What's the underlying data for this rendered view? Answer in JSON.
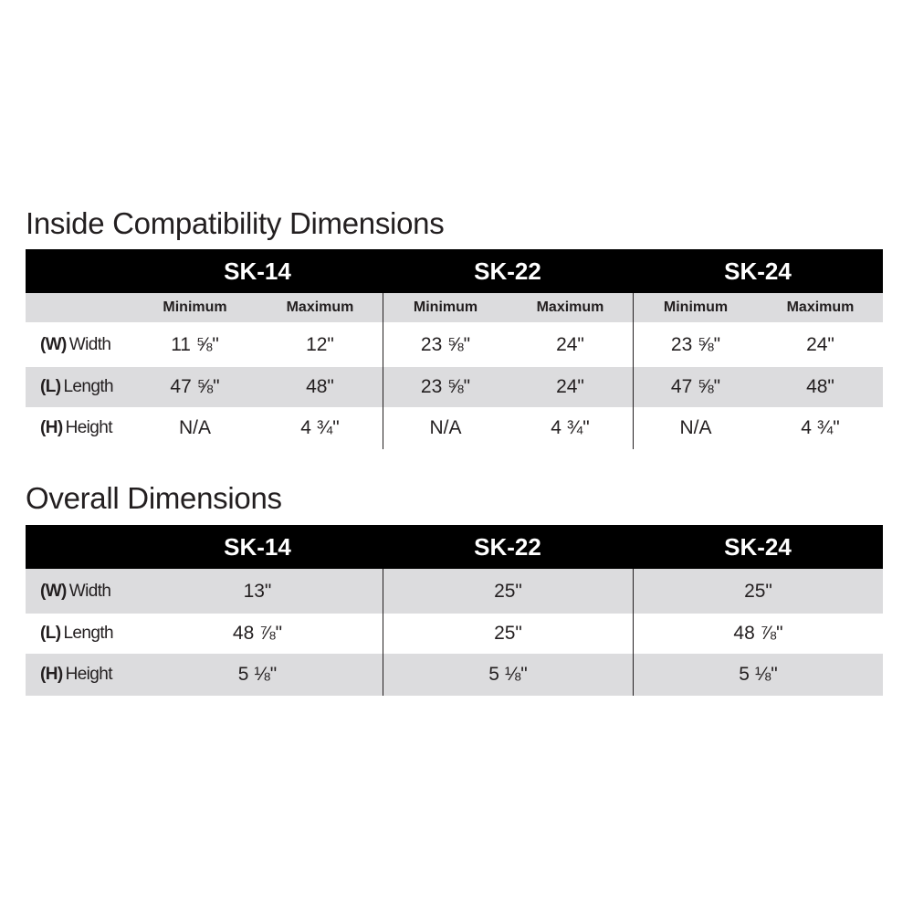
{
  "inside": {
    "title": "Inside Compatibility Dimensions",
    "models": [
      "SK-14",
      "SK-22",
      "SK-24"
    ],
    "subheaders": [
      "Minimum",
      "Maximum"
    ],
    "rows": [
      {
        "code": "(W)",
        "name": "Width",
        "values": [
          "11 ⅝\"",
          "12\"",
          "23 ⅝\"",
          "24\"",
          "23  ⅝\"",
          "24\""
        ]
      },
      {
        "code": "(L)",
        "name": "Length",
        "values": [
          "47 ⅝\"",
          "48\"",
          "23 ⅝\"",
          "24\"",
          "47 ⅝\"",
          "48\""
        ]
      },
      {
        "code": "(H)",
        "name": "Height",
        "values": [
          "N/A",
          "4 ¾\"",
          "N/A",
          "4 ¾\"",
          "N/A",
          "4 ¾\""
        ]
      }
    ]
  },
  "overall": {
    "title": "Overall Dimensions",
    "models": [
      "SK-14",
      "SK-22",
      "SK-24"
    ],
    "rows": [
      {
        "code": "(W)",
        "name": "Width",
        "values": [
          "13\"",
          "25\"",
          "25\""
        ]
      },
      {
        "code": "(L)",
        "name": "Length",
        "values": [
          "48 ⅞\"",
          "25\"",
          "48 ⅞\""
        ]
      },
      {
        "code": "(H)",
        "name": "Height",
        "values": [
          "5 ⅛\"",
          "5 ⅛\"",
          "5 ⅛\""
        ]
      }
    ]
  },
  "colors": {
    "header_bg": "#000000",
    "stripe": "#dcdcde",
    "text": "#231f20"
  }
}
